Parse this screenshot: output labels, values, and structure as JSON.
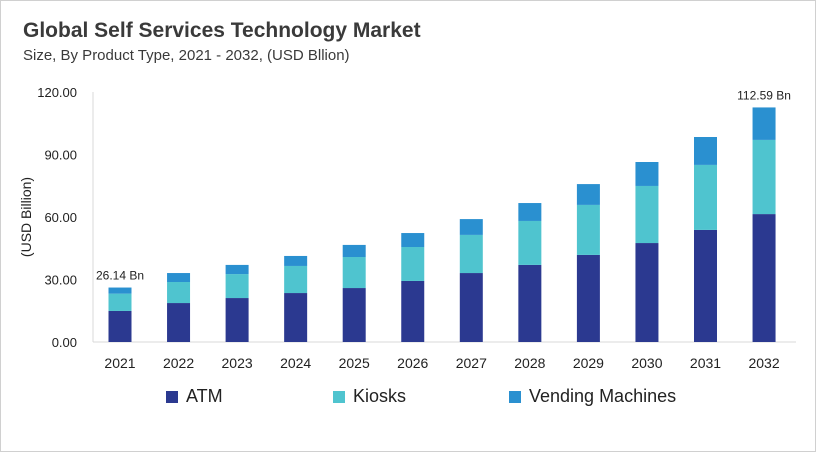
{
  "chart_data": {
    "type": "bar",
    "stacked": true,
    "title": "Global Self Services Technology Market",
    "subtitle": "Size, By Product Type, 2021 - 2032, (USD Bllion)",
    "xlabel": "",
    "ylabel": "(USD Billion)",
    "ylim": [
      0,
      120
    ],
    "yticks": [
      "0.00",
      "30.00",
      "60.00",
      "90.00",
      "120.00"
    ],
    "grid": false,
    "legend": "bottom",
    "categories": [
      "2021",
      "2022",
      "2023",
      "2024",
      "2025",
      "2026",
      "2027",
      "2028",
      "2029",
      "2030",
      "2031",
      "2032"
    ],
    "series": [
      {
        "name": "ATM",
        "color": "#2b3990",
        "values": [
          14.9,
          18.7,
          21.1,
          23.5,
          25.9,
          29.3,
          33.1,
          37.0,
          41.8,
          47.5,
          53.8,
          61.4
        ]
      },
      {
        "name": "Kiosks",
        "color": "#4fc4cf",
        "values": [
          8.3,
          10.1,
          11.5,
          13.0,
          14.9,
          16.3,
          18.3,
          21.1,
          24.0,
          27.4,
          31.2,
          35.6
        ]
      },
      {
        "name": "Vending Machines",
        "color": "#2a90d0",
        "values": [
          2.94,
          4.3,
          4.4,
          4.8,
          5.8,
          6.7,
          7.6,
          8.6,
          10.0,
          11.5,
          13.4,
          15.59
        ]
      }
    ],
    "annotations": [
      {
        "category": "2021",
        "text": "26.14  Bn"
      },
      {
        "category": "2032",
        "text": "112.59  Bn"
      }
    ]
  }
}
